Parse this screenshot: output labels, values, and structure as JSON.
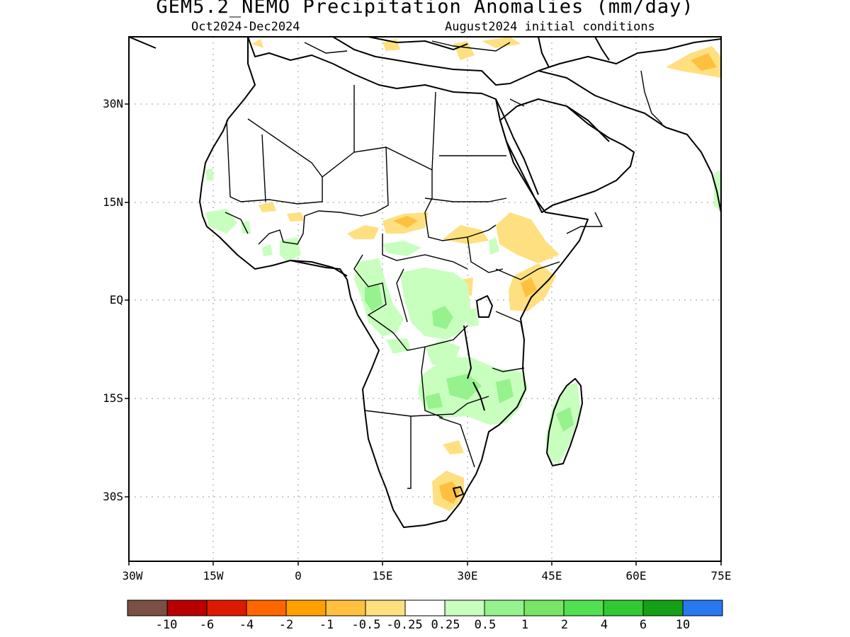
{
  "title": "GEM5.2_NEMO Precipitation Anomalies (mm/day)",
  "period": "Oct2024-Dec2024",
  "init": "August2024 initial conditions",
  "lat_labels": [
    "30N",
    "15N",
    "EQ",
    "15S",
    "30S"
  ],
  "lon_labels": [
    "30W",
    "15W",
    "0",
    "15E",
    "30E",
    "45E",
    "60E",
    "75E"
  ],
  "colorbar_labels": [
    "-10",
    "-6",
    "-4",
    "-2",
    "-1",
    "-0.5",
    "-0.25",
    "0.25",
    "0.5",
    "1",
    "2",
    "4",
    "6",
    "10"
  ],
  "colorbar_colors": [
    "#7a4f45",
    "#b80000",
    "#dd1a00",
    "#ff6600",
    "#ffa000",
    "#ffc040",
    "#ffe080",
    "#ffffff",
    "#c8ffbe",
    "#96f28c",
    "#78e664",
    "#50e050",
    "#32c832",
    "#14a014",
    "#2878f0"
  ],
  "map_extent": {
    "lon": [
      -30,
      75
    ],
    "lat": [
      -38,
      40
    ]
  }
}
